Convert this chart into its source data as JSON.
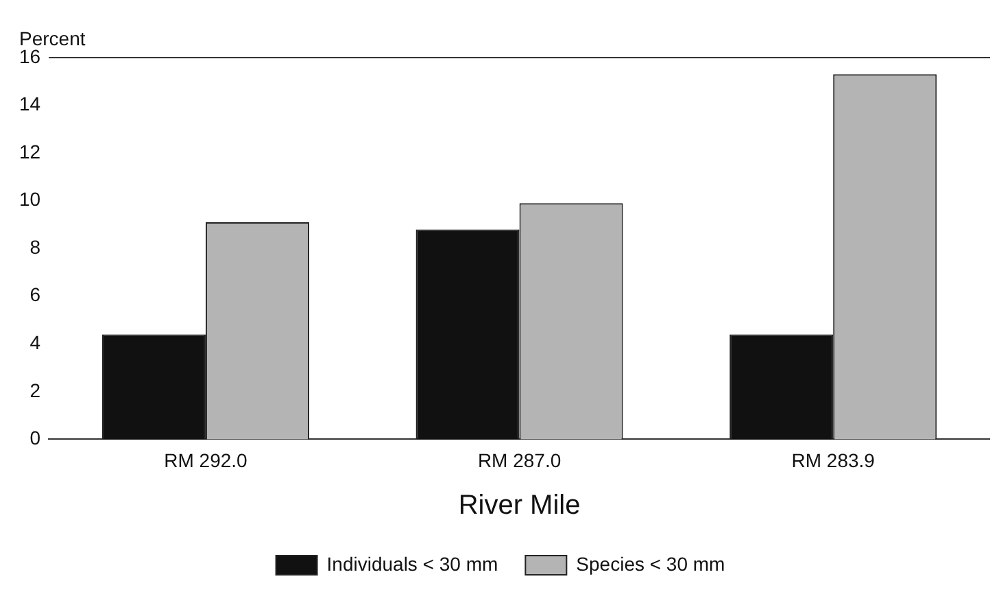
{
  "chart_data": {
    "type": "bar",
    "ylabel": "Percent",
    "xlabel": "River Mile",
    "categories": [
      "RM 292.0",
      "RM 287.0",
      "RM 283.9"
    ],
    "series": [
      {
        "name": "Individuals < 30 mm",
        "color": "#111111",
        "values": [
          4.4,
          8.8,
          4.4
        ]
      },
      {
        "name": "Species < 30 mm",
        "color": "#b4b4b4",
        "values": [
          9.1,
          9.9,
          15.3
        ]
      }
    ],
    "ylim": [
      0,
      16
    ],
    "yticks": [
      0,
      2,
      4,
      6,
      8,
      10,
      12,
      14,
      16
    ],
    "grid": false,
    "legend": "bottom"
  }
}
